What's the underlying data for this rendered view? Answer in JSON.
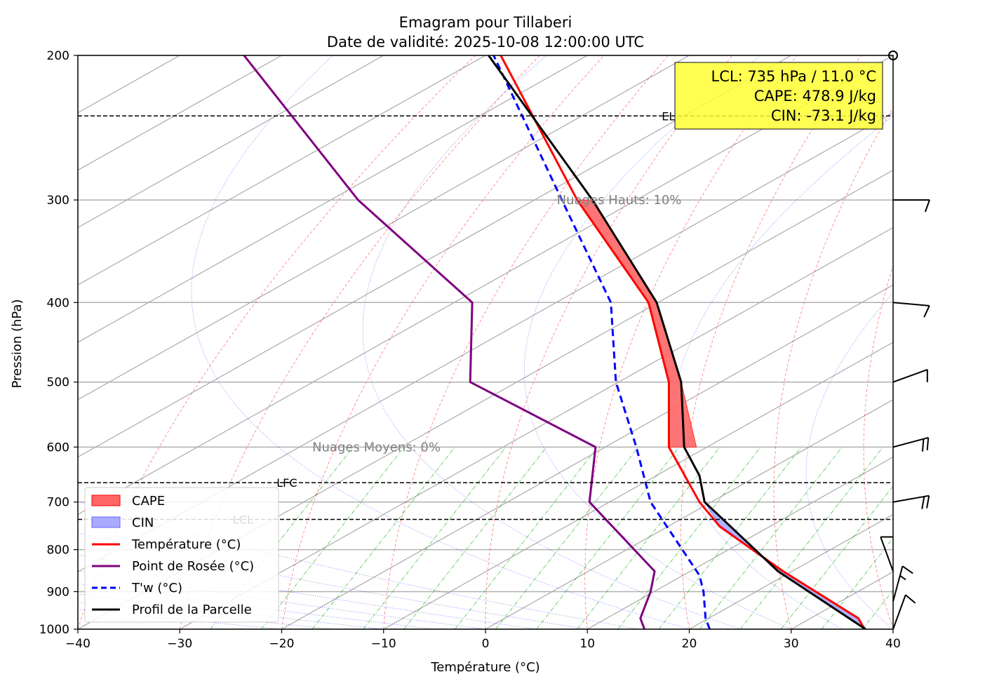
{
  "chart_data": {
    "type": "line",
    "title": "Emagram pour Tillaberi",
    "subtitle": "Date de validité: 2025-10-08 12:00:00 UTC",
    "xlabel": "Température (°C)",
    "ylabel": "Pression (hPa)",
    "xlim": [
      -40,
      40
    ],
    "ylim": [
      1000,
      200
    ],
    "y_scale": "log",
    "grid": true,
    "x_ticks": [
      -40,
      -30,
      -20,
      -10,
      0,
      10,
      20,
      30,
      40
    ],
    "x_tick_labels": [
      "−40",
      "−30",
      "−20",
      "−10",
      "0",
      "10",
      "20",
      "30",
      "40"
    ],
    "y_ticks": [
      1000,
      900,
      800,
      700,
      600,
      500,
      400,
      300,
      200
    ],
    "y_tick_labels": [
      "1000",
      "900",
      "800",
      "700",
      "600",
      "500",
      "400",
      "300",
      "200"
    ],
    "series": [
      {
        "name": "Température (°C)",
        "color": "#ff0000",
        "style": "solid",
        "points": [
          [
            37.2,
            1000
          ],
          [
            36.6,
            970
          ],
          [
            29.2,
            850
          ],
          [
            23,
            750
          ],
          [
            21,
            700
          ],
          [
            18,
            600
          ],
          [
            18,
            500
          ],
          [
            16,
            400
          ],
          [
            9,
            300
          ],
          [
            1.5,
            200
          ]
        ]
      },
      {
        "name": "Point de Rosée (°C)",
        "color": "#800080",
        "style": "solid",
        "points": [
          [
            15.6,
            1000
          ],
          [
            15.2,
            970
          ],
          [
            16.2,
            900
          ],
          [
            16.6,
            850
          ],
          [
            10.2,
            700
          ],
          [
            10.8,
            600
          ],
          [
            -1.5,
            500
          ],
          [
            -1.3,
            400
          ],
          [
            -12.5,
            300
          ],
          [
            -23.7,
            200
          ]
        ]
      },
      {
        "name": "T'w (°C)",
        "color": "#0000ff",
        "style": "dashed",
        "points": [
          [
            22,
            1000
          ],
          [
            21.6,
            970
          ],
          [
            21.4,
            900
          ],
          [
            21,
            860
          ],
          [
            16.2,
            700
          ],
          [
            14.8,
            600
          ],
          [
            12.8,
            500
          ],
          [
            12.3,
            400
          ],
          [
            7.5,
            300
          ],
          [
            0.8,
            200
          ]
        ]
      },
      {
        "name": "Profil de la Parcelle",
        "color": "#000000",
        "style": "solid",
        "points": [
          [
            37.3,
            1000
          ],
          [
            28.7,
            850
          ],
          [
            21.5,
            700
          ],
          [
            21,
            650
          ],
          [
            19.5,
            600
          ],
          [
            19.2,
            500
          ],
          [
            16.8,
            400
          ],
          [
            10.5,
            300
          ],
          [
            0.3,
            200
          ]
        ]
      }
    ],
    "cape_regions": [
      [
        [
          18,
          600
        ],
        [
          18,
          500
        ],
        [
          16,
          400
        ],
        [
          9,
          300
        ],
        [
          10.5,
          300
        ],
        [
          16.8,
          400
        ],
        [
          19.2,
          500
        ],
        [
          20.7,
          600
        ]
      ]
    ],
    "cin_regions": [
      [
        [
          21.5,
          700
        ],
        [
          28.7,
          850
        ],
        [
          37.3,
          1000
        ],
        [
          36.6,
          970
        ],
        [
          29.2,
          850
        ],
        [
          22.9,
          745
        ]
      ]
    ],
    "levels": [
      {
        "label": "EL",
        "pressure": 237,
        "label_temp": 17.3
      },
      {
        "label": "LFC",
        "pressure": 663,
        "label_temp": -20.5
      },
      {
        "label": "LCL",
        "pressure": 735,
        "label_temp": -24.8
      }
    ],
    "annotations": [
      {
        "text": "Nuages Hauts: 10%",
        "temp": 7.0,
        "pressure": 300
      },
      {
        "text": "Nuages Moyens: 0%",
        "temp": -17.0,
        "pressure": 600
      }
    ],
    "info_box": {
      "lines": [
        "LCL: 735 hPa / 11.0 °C",
        "CAPE: 478.9 J/kg",
        "CIN: -73.1 J/kg"
      ],
      "background": "#ffff33",
      "position": "top-right"
    },
    "legend": {
      "position": "bottom-left",
      "items": [
        {
          "label": "CAPE",
          "kind": "patch",
          "color": "#ff6666"
        },
        {
          "label": "CIN",
          "kind": "patch",
          "color": "#aaaaff"
        },
        {
          "label": "Température (°C)",
          "kind": "line",
          "color": "#ff0000"
        },
        {
          "label": "Point de Rosée (°C)",
          "kind": "line",
          "color": "#800080"
        },
        {
          "label": "T'w (°C)",
          "kind": "dashed",
          "color": "#0000ff"
        },
        {
          "label": "Profil de la Parcelle",
          "kind": "line",
          "color": "#000000"
        }
      ]
    },
    "wind_barbs": [
      {
        "pressure": 1000,
        "speed_kt": 10,
        "direction_deg": 20
      },
      {
        "pressure": 925,
        "speed_kt": 5,
        "direction_deg": 15
      },
      {
        "pressure": 850,
        "speed_kt": 10,
        "direction_deg": 340
      },
      {
        "pressure": 700,
        "speed_kt": 20,
        "direction_deg": 80
      },
      {
        "pressure": 600,
        "speed_kt": 20,
        "direction_deg": 75
      },
      {
        "pressure": 500,
        "speed_kt": 10,
        "direction_deg": 70
      },
      {
        "pressure": 400,
        "speed_kt": 10,
        "direction_deg": 95
      },
      {
        "pressure": 300,
        "speed_kt": 10,
        "direction_deg": 90
      }
    ],
    "colors": {
      "isotherm": "#aaaaaa",
      "dry_adiabat": "#ff0000",
      "moist_adiabat": "#0000ff",
      "mixing_ratio": "#00aa00",
      "pressure_grid": "#b0b0b0"
    }
  }
}
